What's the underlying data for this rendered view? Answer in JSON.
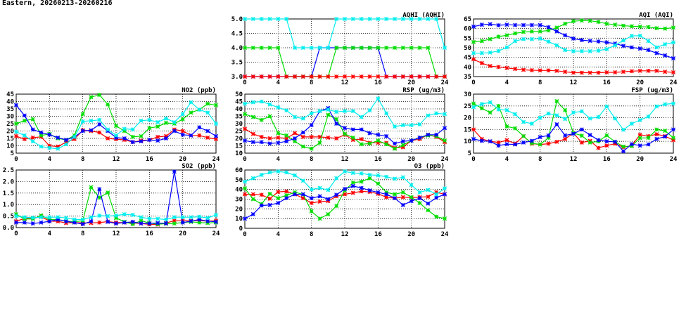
{
  "header": {
    "title": "Eastern, 20260213-20260216"
  },
  "colors": {
    "red": "#ff0000",
    "green": "#00dd00",
    "blue": "#0000ff",
    "cyan": "#00eeee"
  },
  "chart_data": [
    {
      "id": "no2",
      "type": "line",
      "title": "NO2 (ppb)",
      "xlim": [
        0,
        24
      ],
      "xticks": [
        0,
        4,
        8,
        12,
        16,
        20,
        24
      ],
      "ylim": [
        5,
        45
      ],
      "ystep": 5,
      "ydecimals": 0,
      "grid": true,
      "x": [
        0,
        1,
        2,
        3,
        4,
        5,
        6,
        7,
        8,
        9,
        10,
        11,
        12,
        13,
        14,
        15,
        16,
        17,
        18,
        19,
        20,
        21,
        22,
        23,
        24
      ],
      "series": [
        {
          "color": "red",
          "values": [
            16.5,
            14.5,
            15.5,
            16,
            10,
            9.5,
            12.5,
            14.5,
            20.5,
            20,
            19,
            15,
            14.5,
            14,
            12.5,
            13.5,
            14,
            16,
            16.5,
            21,
            20,
            17,
            17,
            15.5,
            14.5
          ]
        },
        {
          "color": "green",
          "values": [
            25,
            27,
            28,
            17,
            18,
            15,
            14,
            17,
            31.5,
            43,
            44.5,
            38,
            23.5,
            20,
            16,
            16.5,
            22,
            23,
            25.5,
            25,
            28,
            32.5,
            34.5,
            38.5,
            37.5
          ]
        },
        {
          "color": "blue",
          "values": [
            37.5,
            30.5,
            21,
            19,
            17.5,
            15.5,
            14,
            16,
            20,
            20.5,
            24.5,
            20,
            15.5,
            15,
            12.5,
            13,
            14,
            13.5,
            15,
            20,
            17.5,
            17,
            22.5,
            20,
            16.5
          ]
        },
        {
          "color": "cyan",
          "values": [
            19.5,
            17,
            13,
            9.5,
            8.5,
            8,
            11,
            16,
            26.5,
            27,
            27.5,
            21,
            17,
            21.5,
            21,
            27,
            27.5,
            26,
            28.5,
            26,
            31.5,
            39.5,
            34.5,
            32.5,
            25
          ]
        }
      ]
    },
    {
      "id": "so2",
      "type": "line",
      "title": "SO2 (ppb)",
      "xlim": [
        0,
        24
      ],
      "xticks": [
        0,
        4,
        8,
        12,
        16,
        20,
        24
      ],
      "ylim": [
        0,
        2.5
      ],
      "ystep": 0.5,
      "ydecimals": 1,
      "grid": true,
      "x": [
        0,
        1,
        2,
        3,
        4,
        5,
        6,
        7,
        8,
        9,
        10,
        11,
        12,
        13,
        14,
        15,
        16,
        17,
        18,
        19,
        20,
        21,
        22,
        23,
        24
      ],
      "series": [
        {
          "color": "red",
          "values": [
            0.27,
            0.4,
            0.4,
            0.48,
            0.28,
            0.27,
            0.2,
            0.22,
            0.2,
            0.2,
            0.22,
            0.26,
            0.22,
            0.22,
            0.2,
            0.18,
            0.14,
            0.13,
            0.2,
            0.3,
            0.3,
            0.3,
            0.3,
            0.28,
            0.3
          ]
        },
        {
          "color": "green",
          "values": [
            0.58,
            0.37,
            0.38,
            0.53,
            0.35,
            0.35,
            0.28,
            0.25,
            0.3,
            1.75,
            1.3,
            1.52,
            0.42,
            0.25,
            0.15,
            0.3,
            0.2,
            0.15,
            0.17,
            0.18,
            0.22,
            0.25,
            0.22,
            0.2,
            0.22
          ]
        },
        {
          "color": "blue",
          "values": [
            0.22,
            0.22,
            0.18,
            0.22,
            0.27,
            0.35,
            0.27,
            0.22,
            0.15,
            0.27,
            1.67,
            0.25,
            0.18,
            0.22,
            0.25,
            0.18,
            0.18,
            0.2,
            0.18,
            2.43,
            0.22,
            0.28,
            0.35,
            0.28,
            0.25
          ]
        },
        {
          "color": "cyan",
          "values": [
            0.5,
            0.45,
            0.43,
            0.45,
            0.45,
            0.45,
            0.42,
            0.35,
            0.35,
            0.45,
            0.52,
            0.5,
            0.52,
            0.58,
            0.55,
            0.45,
            0.38,
            0.38,
            0.35,
            0.45,
            0.45,
            0.45,
            0.47,
            0.42,
            0.55
          ]
        }
      ]
    },
    {
      "id": "aqhi",
      "type": "line",
      "title": "AQHI (AQHI)",
      "xlim": [
        0,
        24
      ],
      "xticks": [
        0,
        4,
        8,
        12,
        16,
        20,
        24
      ],
      "ylim": [
        3,
        5
      ],
      "ystep": 0.5,
      "ydecimals": 1,
      "grid": true,
      "x": [
        0,
        1,
        2,
        3,
        4,
        5,
        6,
        7,
        8,
        9,
        10,
        11,
        12,
        13,
        14,
        15,
        16,
        17,
        18,
        19,
        20,
        21,
        22,
        23,
        24
      ],
      "series": [
        {
          "color": "blue",
          "values": [
            3,
            3,
            3,
            3,
            3,
            3,
            3,
            3,
            3,
            4,
            4,
            4,
            4,
            4,
            4,
            4,
            4,
            3,
            3,
            3,
            3,
            3,
            3,
            3,
            3
          ]
        },
        {
          "color": "green",
          "values": [
            4,
            4,
            4,
            4,
            4,
            3,
            3,
            3,
            3,
            3,
            3,
            4,
            4,
            4,
            4,
            4,
            4,
            4,
            4,
            4,
            4,
            4,
            4,
            3,
            3
          ]
        },
        {
          "color": "red",
          "values": [
            3,
            3,
            3,
            3,
            3,
            3,
            3,
            3,
            3,
            3,
            3,
            3,
            3,
            3,
            3,
            3,
            3,
            3,
            3,
            3,
            3,
            3,
            3,
            3,
            3
          ]
        },
        {
          "color": "cyan",
          "values": [
            5,
            5,
            5,
            5,
            5,
            5,
            4,
            4,
            4,
            4,
            4,
            5,
            5,
            5,
            5,
            5,
            5,
            5,
            5,
            5,
            5,
            5,
            5,
            5,
            4
          ]
        }
      ]
    },
    {
      "id": "rsp",
      "type": "line",
      "title": "RSP (ug/m3)",
      "xlim": [
        0,
        24
      ],
      "xticks": [
        0,
        4,
        8,
        12,
        16,
        20,
        24
      ],
      "ylim": [
        10,
        50
      ],
      "ystep": 5,
      "ydecimals": 0,
      "grid": true,
      "x": [
        0,
        1,
        2,
        3,
        4,
        5,
        6,
        7,
        8,
        9,
        10,
        11,
        12,
        13,
        14,
        15,
        16,
        17,
        18,
        19,
        20,
        21,
        22,
        23,
        24
      ],
      "series": [
        {
          "color": "red",
          "values": [
            26.5,
            23,
            21,
            20,
            20.5,
            20,
            23.5,
            21,
            21,
            21,
            20.5,
            20,
            22.5,
            19,
            19.5,
            17,
            17,
            17,
            13.5,
            14,
            18.5,
            19.5,
            22.5,
            21,
            17.5
          ]
        },
        {
          "color": "green",
          "values": [
            36.5,
            34.5,
            32.5,
            35,
            23.5,
            22,
            18,
            14.5,
            13,
            17,
            36,
            33,
            23,
            20.5,
            16,
            16.5,
            18.5,
            16,
            13,
            15.5,
            18.5,
            20.5,
            22,
            21.5,
            18.5
          ]
        },
        {
          "color": "blue",
          "values": [
            18.5,
            17.5,
            17.5,
            16.5,
            17,
            18,
            20,
            24,
            29,
            38.5,
            40.5,
            30,
            27,
            26,
            26,
            23.5,
            22.5,
            21.5,
            16.5,
            18,
            18.5,
            20.5,
            22.5,
            22.5,
            27
          ]
        },
        {
          "color": "cyan",
          "values": [
            43.5,
            44.5,
            45,
            43,
            41,
            39,
            34.5,
            33.5,
            37,
            38.5,
            39.5,
            38,
            38.5,
            38.5,
            34.5,
            39,
            47,
            37,
            28,
            29,
            29,
            29.5,
            35.5,
            37,
            36.5
          ]
        }
      ]
    },
    {
      "id": "o3",
      "type": "line",
      "title": "O3 (ppb)",
      "xlim": [
        0,
        24
      ],
      "xticks": [
        0,
        4,
        8,
        12,
        16,
        20,
        24
      ],
      "ylim": [
        0,
        60
      ],
      "ystep": 10,
      "ydecimals": 0,
      "grid": true,
      "x": [
        0,
        1,
        2,
        3,
        4,
        5,
        6,
        7,
        8,
        9,
        10,
        11,
        12,
        13,
        14,
        15,
        16,
        17,
        18,
        19,
        20,
        21,
        22,
        23,
        24
      ],
      "series": [
        {
          "color": "red",
          "values": [
            35,
            35,
            34.5,
            30.5,
            37.5,
            38,
            35,
            31,
            26,
            27.5,
            28,
            33,
            35,
            36.5,
            38,
            37.5,
            35.5,
            32,
            31,
            32,
            31.5,
            32,
            32.5,
            37,
            35
          ]
        },
        {
          "color": "green",
          "values": [
            41,
            30,
            25,
            35.5,
            31,
            34,
            37,
            35,
            17.5,
            10,
            14.5,
            23,
            39,
            47,
            48,
            51.5,
            46,
            37,
            35,
            37,
            32,
            26,
            18.5,
            12,
            10
          ]
        },
        {
          "color": "blue",
          "values": [
            10,
            14.5,
            23.5,
            24,
            26,
            31,
            35,
            35,
            31,
            33,
            30,
            34.5,
            40.5,
            43.5,
            41.5,
            39,
            37,
            35,
            31,
            24,
            28,
            31,
            25.5,
            31.5,
            35
          ]
        },
        {
          "color": "cyan",
          "values": [
            48,
            51.5,
            55,
            57.5,
            58.5,
            57.5,
            54.5,
            49,
            40,
            41.5,
            39.5,
            51.5,
            58.5,
            57,
            56.5,
            55,
            54.5,
            53,
            51,
            52.5,
            44.5,
            37,
            39.5,
            35,
            41
          ]
        }
      ]
    },
    {
      "id": "aqi",
      "type": "line",
      "title": "AQI (AQI)",
      "xlim": [
        0,
        24
      ],
      "xticks": [
        0,
        4,
        8,
        12,
        16,
        20,
        24
      ],
      "ylim": [
        35,
        65
      ],
      "ystep": 5,
      "ydecimals": 0,
      "grid": true,
      "x": [
        0,
        1,
        2,
        3,
        4,
        5,
        6,
        7,
        8,
        9,
        10,
        11,
        12,
        13,
        14,
        15,
        16,
        17,
        18,
        19,
        20,
        21,
        22,
        23,
        24
      ],
      "series": [
        {
          "color": "red",
          "values": [
            44,
            42,
            40.5,
            40,
            39.5,
            39,
            38.5,
            38.3,
            38.2,
            38.2,
            38,
            37.5,
            37,
            37,
            37,
            37,
            37.2,
            37.2,
            37.5,
            37.8,
            38,
            38,
            38,
            37.5,
            37.2
          ]
        },
        {
          "color": "green",
          "values": [
            53,
            53.5,
            54.5,
            55.8,
            56.5,
            57.5,
            58.2,
            58.5,
            58.5,
            59,
            60.5,
            62.5,
            63.8,
            64.2,
            64,
            63.5,
            62.5,
            62,
            61.5,
            61.2,
            61,
            60.8,
            60.2,
            60,
            60.5
          ]
        },
        {
          "color": "blue",
          "values": [
            61,
            62,
            62.3,
            61.7,
            62,
            61.8,
            61.8,
            61.8,
            61.8,
            60.7,
            58.5,
            56.5,
            54.8,
            54,
            53.6,
            53.3,
            52.8,
            52.2,
            51,
            50.2,
            49.6,
            48.8,
            47.2,
            46,
            44.5
          ]
        },
        {
          "color": "cyan",
          "values": [
            47.2,
            47.2,
            47.5,
            48.3,
            50.2,
            53.5,
            54.5,
            54.5,
            54.8,
            53.2,
            51.3,
            48.8,
            48.2,
            48.2,
            48.2,
            48.5,
            49.3,
            51.3,
            53.8,
            56.2,
            56.3,
            53.5,
            50.2,
            51.8,
            52.8
          ]
        }
      ]
    },
    {
      "id": "fsp",
      "type": "line",
      "title": "FSP (ug/m3)",
      "xlim": [
        0,
        24
      ],
      "xticks": [
        0,
        4,
        8,
        12,
        16,
        20,
        24
      ],
      "ylim": [
        5,
        30
      ],
      "ystep": 5,
      "ydecimals": 0,
      "grid": true,
      "x": [
        0,
        1,
        2,
        3,
        4,
        5,
        6,
        7,
        8,
        9,
        10,
        11,
        12,
        13,
        14,
        15,
        16,
        17,
        18,
        19,
        20,
        21,
        22,
        23,
        24
      ],
      "series": [
        {
          "color": "red",
          "values": [
            15,
            11,
            10,
            9.5,
            10.5,
            9,
            12.2,
            9,
            8.7,
            9,
            9.8,
            11,
            13.5,
            9.5,
            10.2,
            7.2,
            8.2,
            9,
            7.5,
            8.2,
            12.8,
            12.2,
            13,
            12.2,
            10.5
          ]
        },
        {
          "color": "green",
          "values": [
            26,
            24,
            22.2,
            25,
            16.3,
            15.5,
            12.2,
            9.2,
            8.7,
            11.5,
            27,
            23.2,
            13.5,
            12.4,
            9.5,
            10,
            12.5,
            9.8,
            7.8,
            8,
            11.4,
            11.5,
            15,
            14.5,
            11.5
          ]
        },
        {
          "color": "blue",
          "values": [
            11,
            10.2,
            10,
            8.2,
            8.8,
            8.7,
            9.5,
            10.2,
            11.8,
            12.5,
            17.2,
            12.5,
            13.2,
            15,
            12.7,
            10.5,
            10,
            9.8,
            5.8,
            8.8,
            8.2,
            8.7,
            11,
            12,
            15
          ]
        },
        {
          "color": "cyan",
          "values": [
            24.5,
            25.8,
            26.5,
            23.5,
            23.2,
            21.5,
            18.2,
            17.5,
            20,
            21.8,
            21,
            19.5,
            22.2,
            22.7,
            19.7,
            20.3,
            24.8,
            19.7,
            14.9,
            17.5,
            19,
            20.5,
            24.8,
            25.7,
            26
          ]
        }
      ]
    }
  ]
}
